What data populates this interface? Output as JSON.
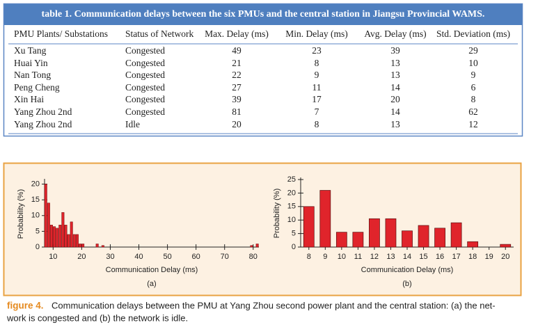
{
  "table": {
    "caption": "table 1. Communication delays between the six PMUs and the central station in Jiangsu Provincial WAMS.",
    "headers": [
      "PMU Plants/ Substations",
      "Status of Network",
      "Max. Delay (ms)",
      "Min. Delay (ms)",
      "Avg. Delay (ms)",
      "Std. Deviation (ms)"
    ],
    "rows": [
      [
        "Xu Tang",
        "Congested",
        49,
        23,
        39,
        29
      ],
      [
        "Huai Yin",
        "Congested",
        21,
        8,
        13,
        10
      ],
      [
        "Nan Tong",
        "Congested",
        22,
        9,
        13,
        9
      ],
      [
        "Peng Cheng",
        "Congested",
        27,
        11,
        14,
        6
      ],
      [
        "Xin Hai",
        "Congested",
        39,
        17,
        20,
        8
      ],
      [
        "Yang Zhou 2nd",
        "Congested",
        81,
        7,
        14,
        62
      ],
      [
        "Yang Zhou 2nd",
        "Idle",
        20,
        8,
        13,
        12
      ]
    ]
  },
  "chart_data": [
    {
      "type": "histogram",
      "subcaption": "(a)",
      "x_label": "Communication Delay (ms)",
      "y_label": "Probability (%)",
      "x": [
        8,
        9,
        10,
        11,
        12,
        13,
        14,
        15,
        16,
        17,
        18,
        19,
        20,
        21,
        26,
        28,
        80,
        82
      ],
      "values": [
        20,
        14,
        7,
        6.5,
        6,
        7,
        11,
        7,
        4,
        8,
        4,
        4,
        1,
        1,
        1,
        0.5,
        0.5,
        1
      ],
      "color": "#e0242b",
      "xlim": [
        7,
        82
      ],
      "xticks": [
        10,
        20,
        30,
        40,
        50,
        60,
        70,
        80
      ],
      "ylim": [
        0,
        21
      ],
      "yticks": [
        0,
        5,
        10,
        15,
        20
      ]
    },
    {
      "type": "bar",
      "subcaption": "(b)",
      "x_label": "Communication Delay (ms)",
      "y_label": "Probability (%)",
      "categories": [
        "8",
        "9",
        "10",
        "11",
        "12",
        "13",
        "14",
        "15",
        "16",
        "17",
        "18",
        "19",
        "20"
      ],
      "values": [
        15,
        21,
        5.5,
        5.5,
        10.5,
        10.5,
        6,
        8,
        7,
        9,
        2,
        0,
        1
      ],
      "color": "#e0242b",
      "ylim": [
        0,
        25
      ],
      "yticks": [
        0,
        5,
        10,
        15,
        20,
        25
      ]
    }
  ],
  "figure": {
    "label": "figure 4.",
    "caption_lines": [
      "Communication delays between the PMU at Yang Zhou second power plant and the central station: (a) the net-",
      "work is congested and (b) the network is idle."
    ]
  }
}
